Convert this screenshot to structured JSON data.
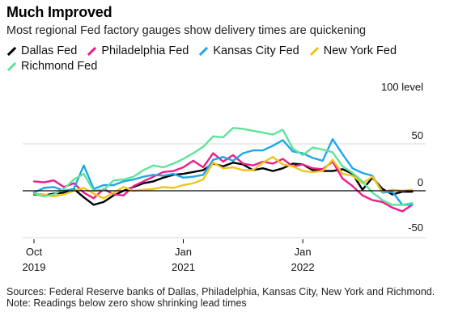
{
  "header": {
    "title": "Much Improved",
    "subtitle": "Most regional Fed factory gauges show delivery times are quickening"
  },
  "footer": {
    "sources": "Sources: Federal Reserve banks of Dallas, Philadelphia, Kansas City, New York and Richmond.",
    "note": "Note: Readings below zero show shrinking lead times"
  },
  "colors": {
    "dallas": "#000000",
    "philadelphia": "#e91e8c",
    "kansas_city": "#1ea7e8",
    "new_york": "#f2c31c",
    "richmond": "#5fe39a",
    "zero_line": "#000000",
    "grid": "#d9d9d9"
  },
  "chart_data": {
    "type": "line",
    "title": "Much Improved",
    "subtitle": "Most regional Fed factory gauges show delivery times are quickening",
    "unit_label": "100 level",
    "ylim": [
      -50,
      100
    ],
    "y_ticks": [
      100,
      50,
      0,
      -50
    ],
    "y_tick_labels": [
      "100 level",
      "50",
      "0",
      "-50"
    ],
    "x_start": "2019-10",
    "x_end": "2022-12",
    "x_ticks": [
      {
        "month": "2019-10",
        "label1": "Oct",
        "label2": "2019"
      },
      {
        "month": "2021-01",
        "label1": "Jan",
        "label2": "2021"
      },
      {
        "month": "2022-01",
        "label1": "Jan",
        "label2": "2022"
      }
    ],
    "grid": true,
    "legend_position": "top",
    "x": [
      "2019-10",
      "2019-11",
      "2019-12",
      "2020-01",
      "2020-02",
      "2020-03",
      "2020-04",
      "2020-05",
      "2020-06",
      "2020-07",
      "2020-08",
      "2020-09",
      "2020-10",
      "2020-11",
      "2020-12",
      "2021-01",
      "2021-02",
      "2021-03",
      "2021-04",
      "2021-05",
      "2021-06",
      "2021-07",
      "2021-08",
      "2021-09",
      "2021-10",
      "2021-11",
      "2021-12",
      "2022-01",
      "2022-02",
      "2022-03",
      "2022-04",
      "2022-05",
      "2022-06",
      "2022-07",
      "2022-08",
      "2022-09",
      "2022-10",
      "2022-11",
      "2022-12"
    ],
    "series": [
      {
        "name": "Dallas Fed",
        "color_key": "dallas",
        "values": [
          -4,
          -5,
          -3,
          -2,
          2,
          -7,
          -15,
          -12,
          -5,
          0,
          4,
          8,
          10,
          14,
          17,
          18,
          20,
          22,
          29,
          26,
          30,
          28,
          22,
          24,
          21,
          24,
          29,
          28,
          22,
          21,
          21,
          23,
          18,
          1,
          14,
          2,
          -4,
          -1,
          -1
        ]
      },
      {
        "name": "Philadelphia Fed",
        "color_key": "philadelphia",
        "values": [
          10,
          9,
          11,
          4,
          8,
          -2,
          -8,
          2,
          -4,
          -5,
          5,
          10,
          15,
          20,
          21,
          25,
          32,
          25,
          40,
          31,
          38,
          29,
          27,
          31,
          29,
          34,
          26,
          28,
          24,
          23,
          31,
          13,
          5,
          -5,
          -10,
          -12,
          -18,
          -22,
          -15
        ]
      },
      {
        "name": "Kansas City Fed",
        "color_key": "kansas_city",
        "values": [
          -2,
          3,
          4,
          0,
          2,
          27,
          2,
          6,
          6,
          10,
          12,
          15,
          17,
          16,
          18,
          14,
          15,
          17,
          33,
          36,
          32,
          40,
          43,
          43,
          48,
          54,
          42,
          40,
          35,
          32,
          55,
          39,
          24,
          19,
          16,
          -2,
          -1,
          -15,
          -15
        ]
      },
      {
        "name": "New York Fed",
        "color_key": "new_york",
        "values": [
          -3,
          -4,
          -6,
          -4,
          0,
          3,
          -3,
          -8,
          -2,
          4,
          0,
          1,
          2,
          4,
          3,
          6,
          8,
          12,
          30,
          24,
          25,
          22,
          22,
          30,
          36,
          28,
          26,
          21,
          20,
          21,
          33,
          18,
          16,
          8,
          15,
          -1,
          1,
          0,
          1
        ]
      },
      {
        "name": "Richmond Fed",
        "color_key": "richmond",
        "values": [
          -3,
          -6,
          -4,
          2,
          12,
          18,
          0,
          1,
          11,
          12,
          15,
          22,
          27,
          25,
          29,
          34,
          40,
          47,
          58,
          57,
          67,
          66,
          64,
          62,
          60,
          65,
          45,
          38,
          46,
          44,
          41,
          26,
          19,
          10,
          -2,
          -10,
          -15,
          -15,
          -13
        ]
      }
    ]
  }
}
